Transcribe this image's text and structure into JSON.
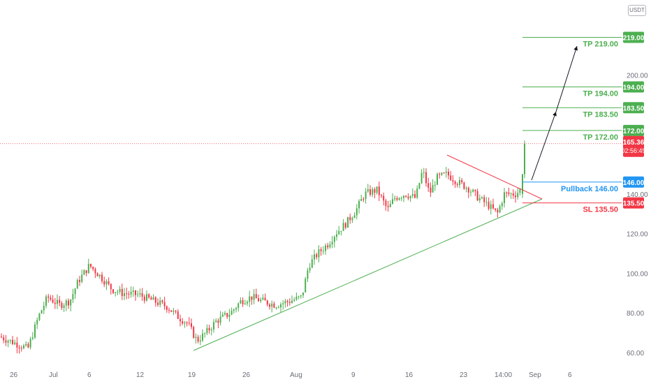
{
  "currency": "USDT",
  "chart_data": {
    "type": "candlestick",
    "y_axis": {
      "ticks": [
        60,
        80,
        100,
        120,
        140,
        200
      ],
      "range": [
        55,
        230
      ]
    },
    "x_axis": {
      "labels": [
        "26",
        "Jul",
        "6",
        "12",
        "19",
        "26",
        "Aug",
        "9",
        "16",
        "23",
        "14:00",
        "Sep",
        "6"
      ]
    },
    "last_price": {
      "value": "165.36",
      "countdown": "02:56:49"
    },
    "levels": [
      {
        "name": "TP 219.00",
        "price": 219.0,
        "badge": "219.00",
        "color": "#4caf50"
      },
      {
        "name": "TP 194.00",
        "price": 194.0,
        "badge": "194.00",
        "color": "#4caf50"
      },
      {
        "name": "TP 183.50",
        "price": 183.5,
        "badge": "183.50",
        "color": "#4caf50"
      },
      {
        "name": "TP 172.00",
        "price": 172.0,
        "badge": "172.00",
        "color": "#4caf50"
      },
      {
        "name": "Pullback 146.00",
        "price": 146.0,
        "badge": "146.00",
        "color": "#2196f3"
      },
      {
        "name": "SL 135.50",
        "price": 135.5,
        "badge": "135.50",
        "color": "#f23645"
      }
    ],
    "colors": {
      "up": "#26a69a",
      "down": "#ef5350",
      "candle_up": "#4caf50",
      "candle_down": "#f23645",
      "support": "#4caf50",
      "resistance": "#f23645",
      "price_line": "#f23645"
    }
  }
}
